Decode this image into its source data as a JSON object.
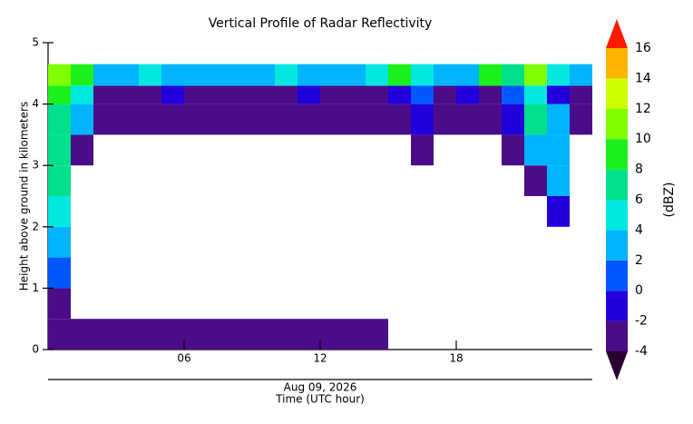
{
  "chart_data": {
    "type": "heatmap",
    "title": "Vertical Profile of Radar Reflectivity",
    "ylabel": "Height above ground in kilometers",
    "xlabel": "Time (UTC hour)",
    "date_label": "Aug 09, 2026",
    "colorbar_label": "(dBZ)",
    "xlim": [
      0,
      24
    ],
    "xticks": [
      {
        "value": 6,
        "label": "06"
      },
      {
        "value": 12,
        "label": "12"
      },
      {
        "value": 18,
        "label": "18"
      }
    ],
    "ylim": [
      0,
      5
    ],
    "yticks": [
      0,
      1,
      2,
      3,
      4,
      5
    ],
    "clim": [
      -4,
      16
    ],
    "cticks": [
      -4,
      -2,
      0,
      2,
      4,
      6,
      8,
      10,
      12,
      14,
      16
    ],
    "colors": [
      "#4b0c8a",
      "#2200dd",
      "#0058ff",
      "#00b4ff",
      "#00e8e0",
      "#00e08a",
      "#1cf01c",
      "#80ff00",
      "#ccff00",
      "#ffb400",
      "#ff5000"
    ],
    "under_color": "#2a0033",
    "over_color": "#ff1a00",
    "xbins": [
      0,
      1,
      2,
      3,
      4,
      5,
      6,
      7,
      8,
      9,
      10,
      11,
      12,
      13,
      14,
      15,
      16,
      17,
      18,
      19,
      20,
      21,
      22,
      23,
      24
    ],
    "ybins": [
      0,
      0.5,
      1,
      1.5,
      2,
      2.5,
      3,
      3.5,
      4,
      4.3,
      4.65
    ],
    "z": [
      [
        -3,
        -3,
        -3,
        -3,
        -3,
        -3,
        -3,
        -3,
        -3,
        -3,
        -3,
        -3,
        -3,
        -3,
        -3,
        null,
        null,
        null,
        null,
        null,
        null,
        null,
        null,
        null
      ],
      [
        -3,
        null,
        null,
        null,
        null,
        null,
        null,
        null,
        null,
        null,
        null,
        null,
        null,
        null,
        null,
        null,
        null,
        null,
        null,
        null,
        null,
        null,
        null,
        null
      ],
      [
        0,
        null,
        null,
        null,
        null,
        null,
        null,
        null,
        null,
        null,
        null,
        null,
        null,
        null,
        null,
        null,
        null,
        null,
        null,
        null,
        null,
        null,
        null,
        null
      ],
      [
        2,
        null,
        null,
        null,
        null,
        null,
        null,
        null,
        null,
        null,
        null,
        null,
        null,
        null,
        null,
        null,
        null,
        null,
        null,
        null,
        null,
        null,
        null,
        null
      ],
      [
        4,
        null,
        null,
        null,
        null,
        null,
        null,
        null,
        null,
        null,
        null,
        null,
        null,
        null,
        null,
        null,
        null,
        null,
        null,
        null,
        null,
        null,
        -1,
        null
      ],
      [
        6,
        null,
        null,
        null,
        null,
        null,
        null,
        null,
        null,
        null,
        null,
        null,
        null,
        null,
        null,
        null,
        null,
        null,
        null,
        null,
        null,
        -3,
        2,
        null
      ],
      [
        6,
        -3,
        null,
        null,
        null,
        null,
        null,
        null,
        null,
        null,
        null,
        null,
        null,
        null,
        null,
        null,
        -3,
        null,
        null,
        null,
        -3,
        2,
        2,
        null
      ],
      [
        6,
        2,
        -3,
        -3,
        -3,
        -3,
        -3,
        -3,
        -3,
        -3,
        -3,
        -3,
        -3,
        -3,
        -3,
        -3,
        -1,
        -3,
        -3,
        -3,
        -1,
        6,
        2,
        -3
      ],
      [
        8,
        4,
        -3,
        -3,
        -3,
        -1,
        -3,
        -3,
        -3,
        -3,
        -3,
        -1,
        -3,
        -3,
        -3,
        -1,
        0,
        -3,
        -1,
        -3,
        0,
        4,
        -1,
        -3
      ],
      [
        10,
        8,
        2,
        2,
        4,
        2,
        2,
        2,
        2,
        2,
        4,
        2,
        2,
        2,
        4,
        8,
        4,
        2,
        2,
        8,
        6,
        10,
        4,
        2
      ]
    ]
  }
}
